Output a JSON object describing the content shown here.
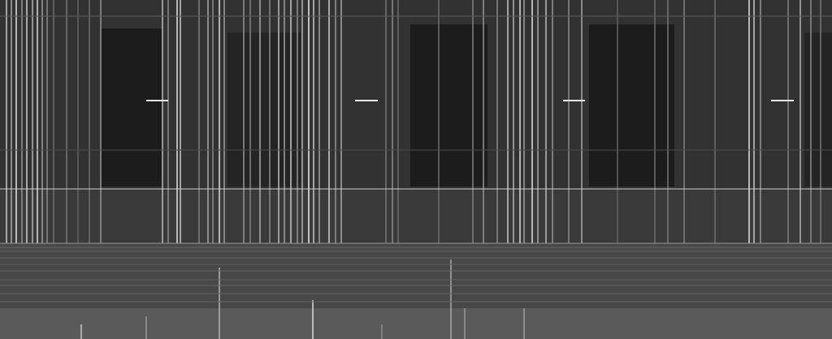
{
  "chart_data": {
    "type": "spectrogram",
    "tick_labels": false,
    "xlim": [
      0,
      1024
    ],
    "ylim": [
      0,
      418
    ],
    "color_range": [
      0,
      255
    ],
    "regions": [
      [
        0,
        1024,
        0,
        300,
        50
      ],
      [
        0,
        1024,
        235,
        300,
        58
      ],
      [
        125,
        200,
        35,
        230,
        28
      ],
      [
        280,
        370,
        40,
        230,
        36
      ],
      [
        505,
        600,
        30,
        230,
        28
      ],
      [
        725,
        830,
        30,
        230,
        28
      ],
      [
        990,
        1024,
        40,
        230,
        36
      ],
      [
        0,
        1024,
        300,
        418,
        72
      ],
      [
        0,
        1024,
        380,
        418,
        90
      ]
    ],
    "vertical_lines": [
      [
        8,
        0,
        300,
        200
      ],
      [
        14,
        0,
        300,
        170
      ],
      [
        20,
        0,
        300,
        230
      ],
      [
        27,
        0,
        300,
        150
      ],
      [
        33,
        0,
        300,
        210
      ],
      [
        40,
        0,
        300,
        180
      ],
      [
        46,
        0,
        300,
        220
      ],
      [
        52,
        0,
        300,
        160
      ],
      [
        58,
        0,
        300,
        140
      ],
      [
        66,
        0,
        300,
        110
      ],
      [
        82,
        0,
        300,
        120
      ],
      [
        96,
        0,
        300,
        100
      ],
      [
        110,
        0,
        300,
        110
      ],
      [
        124,
        0,
        300,
        150
      ],
      [
        200,
        0,
        300,
        190
      ],
      [
        207,
        0,
        300,
        140
      ],
      [
        218,
        0,
        300,
        230
      ],
      [
        222,
        0,
        300,
        200
      ],
      [
        245,
        0,
        300,
        130
      ],
      [
        256,
        0,
        300,
        170
      ],
      [
        262,
        0,
        300,
        140
      ],
      [
        270,
        0,
        300,
        220
      ],
      [
        276,
        0,
        300,
        160
      ],
      [
        300,
        0,
        300,
        150
      ],
      [
        308,
        0,
        300,
        130
      ],
      [
        320,
        0,
        300,
        170
      ],
      [
        332,
        0,
        300,
        140
      ],
      [
        343,
        0,
        300,
        190
      ],
      [
        350,
        0,
        300,
        160
      ],
      [
        358,
        0,
        300,
        200
      ],
      [
        366,
        0,
        300,
        150
      ],
      [
        372,
        0,
        300,
        180
      ],
      [
        380,
        0,
        300,
        240
      ],
      [
        386,
        0,
        300,
        200
      ],
      [
        393,
        0,
        300,
        160
      ],
      [
        405,
        0,
        300,
        210
      ],
      [
        413,
        0,
        300,
        150
      ],
      [
        420,
        0,
        300,
        170
      ],
      [
        475,
        0,
        300,
        120
      ],
      [
        483,
        0,
        300,
        140
      ],
      [
        490,
        0,
        300,
        110
      ],
      [
        540,
        0,
        300,
        110
      ],
      [
        582,
        0,
        300,
        130
      ],
      [
        595,
        0,
        300,
        150
      ],
      [
        612,
        0,
        300,
        140
      ],
      [
        625,
        0,
        300,
        200
      ],
      [
        632,
        0,
        300,
        180
      ],
      [
        640,
        0,
        300,
        220
      ],
      [
        645,
        0,
        300,
        160
      ],
      [
        655,
        0,
        300,
        230
      ],
      [
        662,
        0,
        300,
        170
      ],
      [
        672,
        0,
        300,
        190
      ],
      [
        680,
        0,
        300,
        150
      ],
      [
        700,
        0,
        300,
        140
      ],
      [
        716,
        0,
        300,
        170
      ],
      [
        760,
        0,
        300,
        100
      ],
      [
        806,
        0,
        300,
        110
      ],
      [
        822,
        0,
        300,
        120
      ],
      [
        842,
        0,
        300,
        130
      ],
      [
        880,
        0,
        300,
        110
      ],
      [
        922,
        0,
        300,
        230
      ],
      [
        928,
        0,
        300,
        200
      ],
      [
        936,
        0,
        300,
        150
      ],
      [
        970,
        0,
        300,
        130
      ],
      [
        985,
        0,
        300,
        180
      ],
      [
        998,
        0,
        300,
        140
      ],
      [
        1010,
        0,
        300,
        120
      ],
      [
        100,
        400,
        418,
        200
      ],
      [
        180,
        390,
        418,
        150
      ],
      [
        270,
        330,
        418,
        180
      ],
      [
        385,
        370,
        418,
        220
      ],
      [
        470,
        400,
        418,
        140
      ],
      [
        555,
        320,
        418,
        170
      ],
      [
        572,
        380,
        418,
        150
      ],
      [
        645,
        380,
        418,
        160
      ]
    ],
    "horizontal_lines": [
      [
        20,
        0,
        1024,
        90
      ],
      [
        185,
        0,
        1024,
        75
      ],
      [
        233,
        0,
        1024,
        210
      ],
      [
        300,
        0,
        1024,
        150
      ],
      [
        305,
        0,
        1024,
        100
      ],
      [
        310,
        0,
        1024,
        95
      ],
      [
        318,
        0,
        1024,
        100
      ],
      [
        326,
        0,
        1024,
        95
      ],
      [
        334,
        0,
        1024,
        100
      ],
      [
        345,
        0,
        1024,
        95
      ],
      [
        352,
        0,
        1024,
        100
      ],
      [
        362,
        0,
        1024,
        95
      ],
      [
        372,
        0,
        1024,
        100
      ]
    ],
    "dashes": [
      [
        124,
        180,
        207,
        230
      ],
      [
        124,
        437,
        465,
        230
      ],
      [
        124,
        693,
        720,
        230
      ],
      [
        124,
        949,
        977,
        230
      ]
    ]
  }
}
